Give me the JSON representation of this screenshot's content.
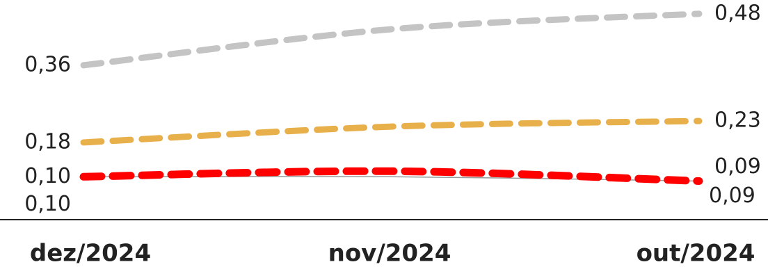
{
  "chart_data": {
    "type": "line",
    "categories": [
      "dez/2024",
      "nov/2024",
      "out/2024"
    ],
    "ylim": [
      0,
      0.5
    ],
    "series": [
      {
        "color": "#999999",
        "values": [
          0.1,
          0.1,
          0.09
        ],
        "value_labels": [
          "0,10",
          null,
          "0,09"
        ]
      },
      {
        "color": "#c4c4c4",
        "values": [
          0.36,
          0.444,
          0.48
        ],
        "value_labels": [
          "0,36",
          null,
          "0,48"
        ]
      },
      {
        "color": "#e8b04a",
        "values": [
          0.18,
          0.217,
          0.23
        ],
        "value_labels": [
          "0,18",
          null,
          "0,23"
        ]
      },
      {
        "color": "#ff0000",
        "values": [
          0.1,
          0.113,
          0.09
        ],
        "value_labels": [
          "0,10",
          null,
          "0,09"
        ]
      }
    ]
  }
}
